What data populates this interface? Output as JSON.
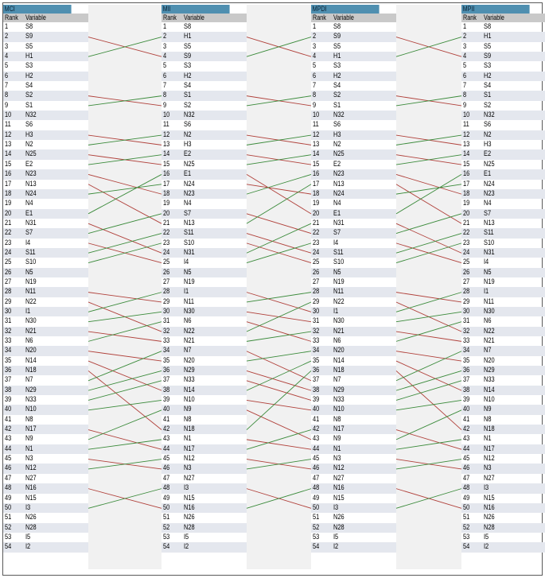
{
  "header": {
    "rank_label": "Rank",
    "variable_label": "Variable"
  },
  "link_colors": {
    "up": "#3a8a3a",
    "down": "#b0403a"
  },
  "columns": [
    {
      "title": "MCI",
      "variables": [
        "S8",
        "S9",
        "S5",
        "H1",
        "S3",
        "H2",
        "S4",
        "S2",
        "S1",
        "N32",
        "S6",
        "H3",
        "N2",
        "N25",
        "E2",
        "N23",
        "N13",
        "N24",
        "N4",
        "E1",
        "N31",
        "S7",
        "I4",
        "S11",
        "S10",
        "N5",
        "N19",
        "N11",
        "N22",
        "I1",
        "N30",
        "N21",
        "N6",
        "N20",
        "N14",
        "N18",
        "N7",
        "N29",
        "N33",
        "N10",
        "N8",
        "N17",
        "N9",
        "N1",
        "N3",
        "N12",
        "N27",
        "N16",
        "N15",
        "I3",
        "N26",
        "N28",
        "I5",
        "I2"
      ]
    },
    {
      "title": "MII",
      "variables": [
        "S8",
        "H1",
        "S5",
        "S9",
        "S3",
        "H2",
        "S4",
        "S1",
        "S2",
        "N32",
        "S6",
        "N2",
        "H3",
        "E2",
        "N25",
        "E1",
        "N24",
        "N23",
        "N4",
        "S7",
        "N13",
        "S11",
        "S10",
        "N31",
        "I4",
        "N5",
        "N19",
        "I1",
        "N11",
        "N30",
        "N6",
        "N22",
        "N21",
        "N7",
        "N20",
        "N29",
        "N33",
        "N14",
        "N10",
        "N9",
        "N8",
        "N18",
        "N1",
        "N17",
        "N12",
        "N3",
        "N27",
        "I3",
        "N15",
        "N16",
        "N26",
        "N28",
        "I5",
        "I2"
      ]
    },
    {
      "title": "MPDI",
      "variables": [
        "S8",
        "S9",
        "S5",
        "H1",
        "S3",
        "H2",
        "S4",
        "S2",
        "S1",
        "N32",
        "S6",
        "H3",
        "N2",
        "N25",
        "E2",
        "N23",
        "N13",
        "N24",
        "N4",
        "E1",
        "N31",
        "S7",
        "I4",
        "S11",
        "S10",
        "N5",
        "N19",
        "N11",
        "N22",
        "I1",
        "N30",
        "N21",
        "N6",
        "N20",
        "N14",
        "N18",
        "N7",
        "N29",
        "N33",
        "N10",
        "N8",
        "N17",
        "N9",
        "N1",
        "N3",
        "N12",
        "N27",
        "N16",
        "N15",
        "I3",
        "N26",
        "N28",
        "I5",
        "I2"
      ]
    },
    {
      "title": "MPII",
      "variables": [
        "S8",
        "H1",
        "S5",
        "S9",
        "S3",
        "H2",
        "S4",
        "S1",
        "S2",
        "N32",
        "S6",
        "N2",
        "H3",
        "E2",
        "N25",
        "E1",
        "N24",
        "N23",
        "N4",
        "S7",
        "N13",
        "S11",
        "S10",
        "N31",
        "I4",
        "N5",
        "N19",
        "I1",
        "N11",
        "N30",
        "N6",
        "N22",
        "N21",
        "N7",
        "N20",
        "N29",
        "N33",
        "N14",
        "N10",
        "N9",
        "N8",
        "N18",
        "N1",
        "N17",
        "N12",
        "N3",
        "N27",
        "I3",
        "N15",
        "N16",
        "N26",
        "N28",
        "I5",
        "I2"
      ]
    }
  ]
}
